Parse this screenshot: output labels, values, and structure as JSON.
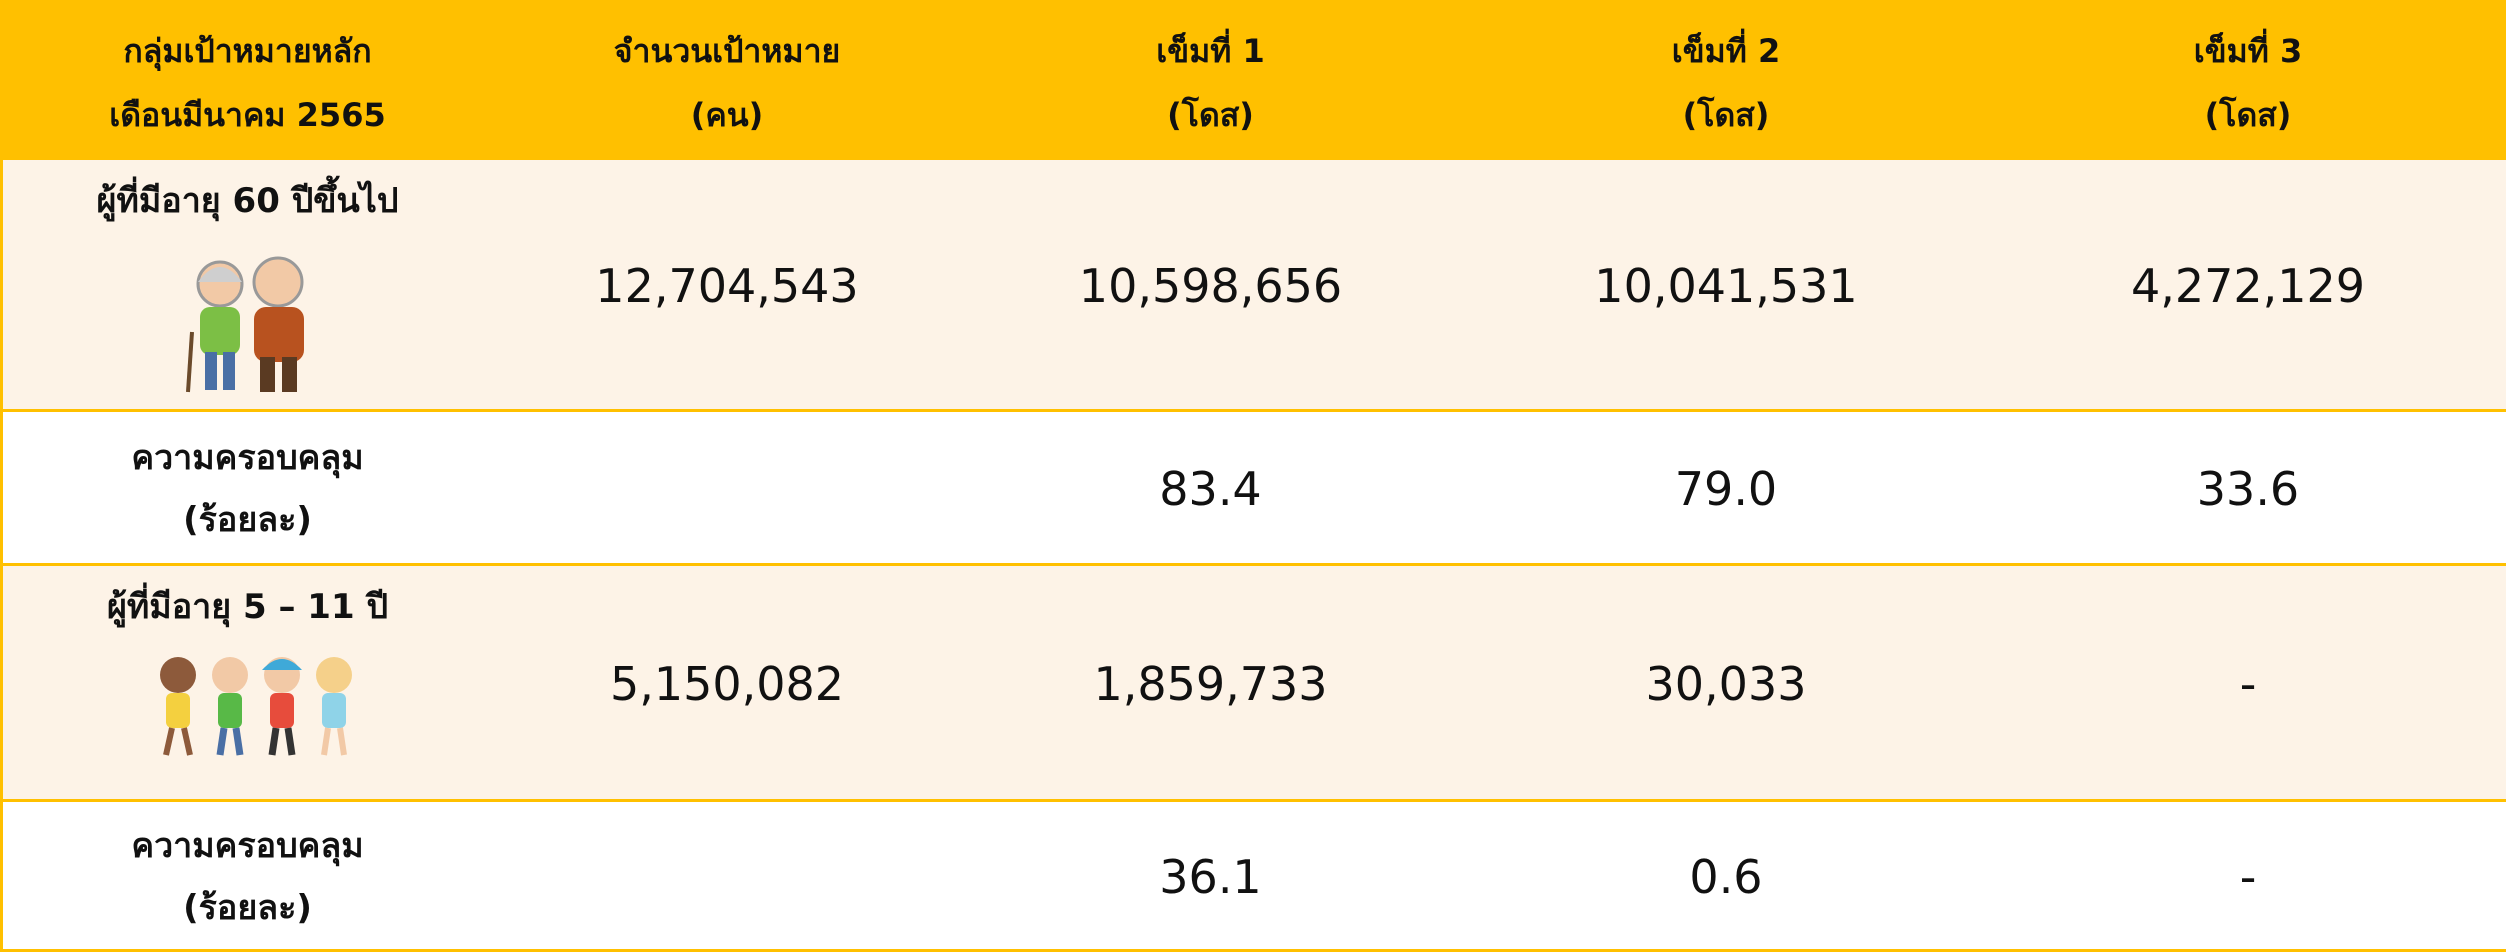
{
  "table": {
    "header": [
      [
        "กลุ่มเป้าหมายหลัก",
        "เดือนมีนาคม 2565"
      ],
      [
        "จำนวนเป้าหมาย",
        "(คน)"
      ],
      [
        "เข็มที่ 1",
        "(โดส)"
      ],
      [
        "เข็มที่ 2",
        "(โดส)"
      ],
      [
        "เข็มที่ 3",
        "(โดส)"
      ]
    ],
    "rows": [
      {
        "label": [
          "ผู้ที่มีอายุ 60 ปีขึ้นไป"
        ],
        "target": "12,704,543",
        "doses": [
          "10,598,656",
          "10,041,531",
          "4,272,129"
        ]
      },
      {
        "label": [
          "ความครอบคลุม",
          "(ร้อยละ)"
        ],
        "doses": [
          "83.4",
          "79.0",
          "33.6"
        ]
      },
      {
        "label": [
          "ผู้ที่มีอายุ 5 – 11 ปี"
        ],
        "target": "5,150,082",
        "doses": [
          "1,859,733",
          "30,033",
          "-"
        ]
      },
      {
        "label": [
          "ความครอบคลุม",
          "(ร้อยละ)"
        ],
        "doses": [
          "36.1",
          "0.6",
          "-"
        ]
      }
    ]
  }
}
